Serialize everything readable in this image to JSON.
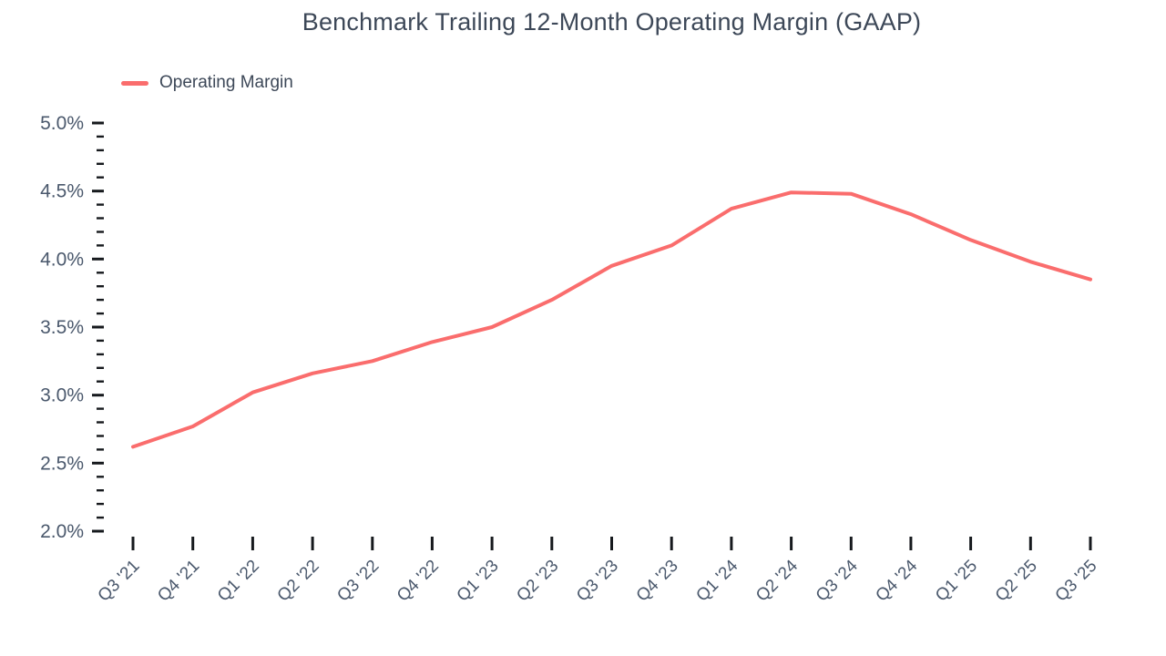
{
  "chart": {
    "title": "Benchmark Trailing 12-Month Operating Margin (GAAP)",
    "legend_label": "Operating Margin",
    "line_color": "#fa6d6d",
    "text_color": "#3d4858",
    "axis_label_color": "#4a586c",
    "tick_color": "#16191d"
  },
  "chart_data": {
    "type": "line",
    "title": "Benchmark Trailing 12-Month Operating Margin (GAAP)",
    "categories": [
      "Q3 '21",
      "Q4 '21",
      "Q1 '22",
      "Q2 '22",
      "Q3 '22",
      "Q4 '22",
      "Q1 '23",
      "Q2 '23",
      "Q3 '23",
      "Q4 '23",
      "Q1 '24",
      "Q2 '24",
      "Q3 '24",
      "Q4 '24",
      "Q1 '25",
      "Q2 '25",
      "Q3 '25"
    ],
    "series": [
      {
        "name": "Operating Margin",
        "color": "#fa6d6d",
        "values": [
          2.62,
          2.77,
          3.02,
          3.16,
          3.25,
          3.39,
          3.5,
          3.7,
          3.95,
          4.1,
          4.37,
          4.49,
          4.48,
          4.33,
          4.14,
          3.98,
          3.85
        ]
      }
    ],
    "xlabel": "",
    "ylabel": "",
    "ylim": [
      2.0,
      5.0
    ],
    "y_major_step": 0.5,
    "y_minor_step": 0.1,
    "y_tick_format": "{value:.1f}%",
    "grid": false,
    "legend_position": "top-left",
    "x_label_rotation": -45
  }
}
